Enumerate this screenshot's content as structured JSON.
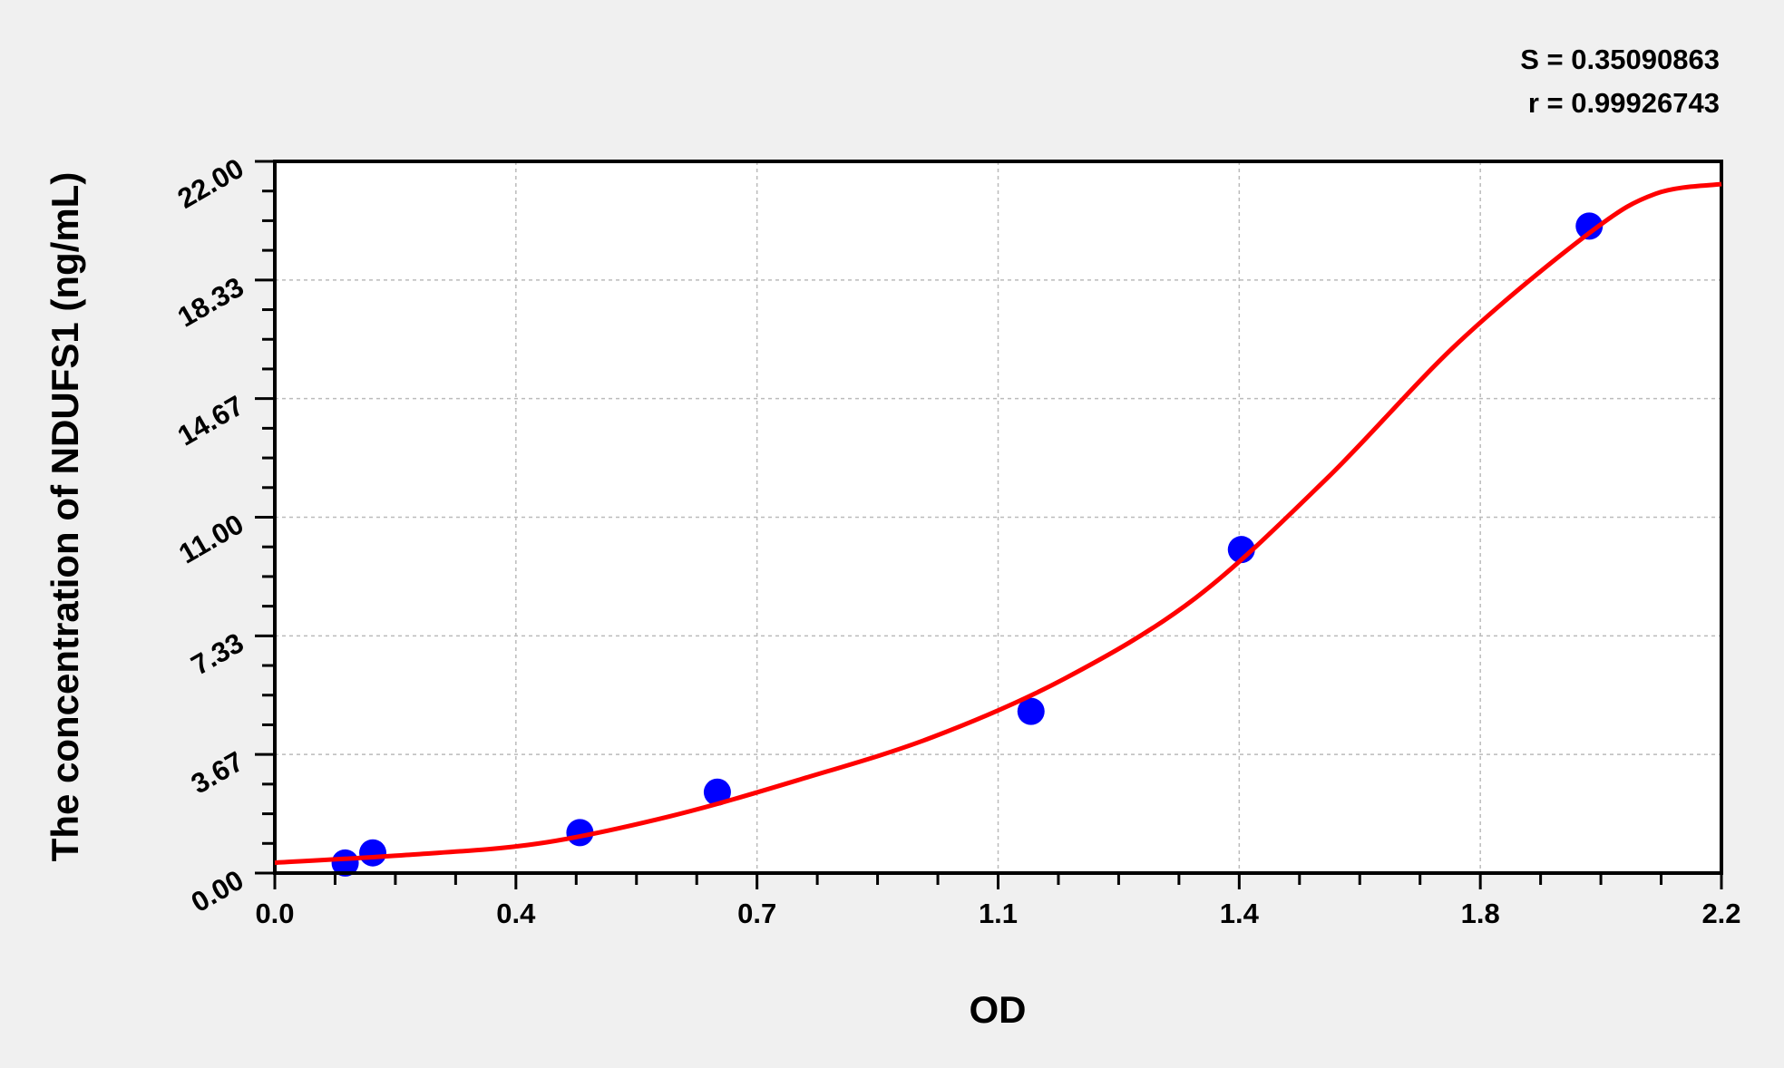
{
  "chart_data": {
    "type": "scatter",
    "title": "",
    "stats": [
      "S = 0.35090863",
      "r = 0.99926743"
    ],
    "xlabel": "OD",
    "ylabel": "The concentration of NDUFS1 (ng/mL)",
    "xlim": [
      0,
      2.2
    ],
    "ylim": [
      0,
      22
    ],
    "x_ticks": [
      "0.0",
      "0.4",
      "0.7",
      "1.1",
      "1.4",
      "1.8",
      "2.2"
    ],
    "y_ticks": [
      "0.00",
      "3.67",
      "7.33",
      "11.00",
      "14.67",
      "18.33",
      "22.00"
    ],
    "grid": true,
    "points": {
      "x": [
        0.107,
        0.149,
        0.464,
        0.673,
        1.15,
        1.47,
        1.999
      ],
      "y": [
        0.312,
        0.625,
        1.25,
        2.5,
        5,
        10,
        20
      ],
      "color": "#0000ff"
    },
    "fit_curve": {
      "x": [
        0,
        0.2,
        0.4,
        0.6,
        0.8,
        1.0,
        1.2,
        1.4,
        1.6,
        1.8,
        2.0,
        2.1,
        2.2
      ],
      "y": [
        0.32,
        0.56,
        0.91,
        1.75,
        2.9,
        4.2,
        6.0,
        8.5,
        12.2,
        16.4,
        19.8,
        21.0,
        21.3
      ],
      "color": "#ff0000"
    }
  }
}
